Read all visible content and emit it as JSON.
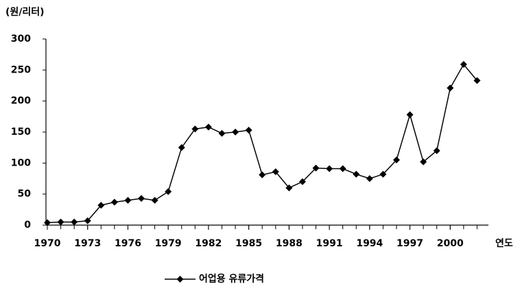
{
  "chart_data": {
    "type": "line",
    "y_axis_label": "(원/리터)",
    "x_axis_label": "연도",
    "x": [
      1970,
      1971,
      1972,
      1973,
      1974,
      1975,
      1976,
      1977,
      1978,
      1979,
      1980,
      1981,
      1982,
      1983,
      1984,
      1985,
      1986,
      1987,
      1988,
      1989,
      1990,
      1991,
      1992,
      1993,
      1994,
      1995,
      1996,
      1997,
      1998,
      1999,
      2000,
      2001,
      2002
    ],
    "series": [
      {
        "name": "어업용 유류가격",
        "color": "#000000",
        "values": [
          4,
          5,
          5,
          7,
          32,
          37,
          40,
          43,
          40,
          54,
          125,
          155,
          158,
          148,
          150,
          153,
          81,
          86,
          60,
          70,
          92,
          91,
          91,
          82,
          75,
          82,
          105,
          178,
          102,
          120,
          221,
          259,
          233
        ]
      }
    ],
    "xlim": [
      1970,
      2003
    ],
    "xticks": [
      1970,
      1973,
      1976,
      1979,
      1982,
      1985,
      1988,
      1991,
      1994,
      1997,
      2000
    ],
    "ylim": [
      0,
      300
    ],
    "yticks": [
      0,
      50,
      100,
      150,
      200,
      250,
      300
    ],
    "grid": false
  }
}
